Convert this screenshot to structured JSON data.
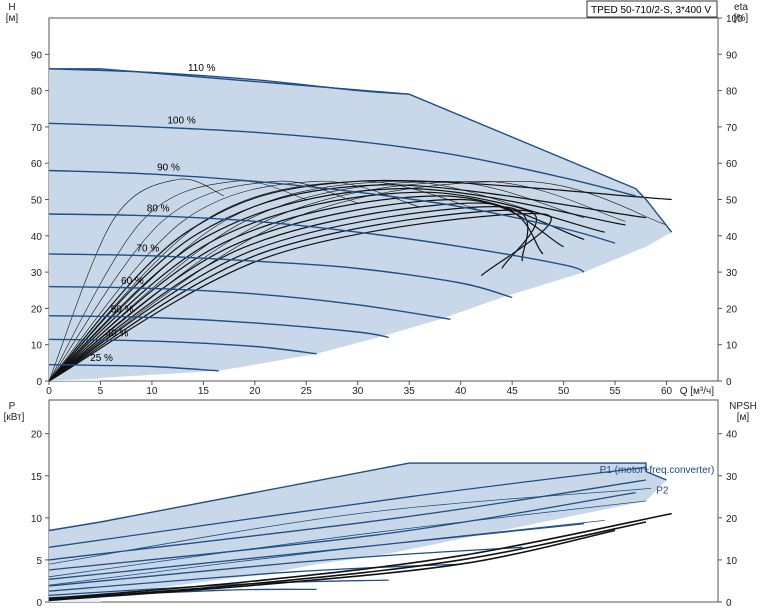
{
  "pump_label": "TPED 50-710/2-S, 3*400 V",
  "colors": {
    "area_fill": "#c9d8e8",
    "area_fill_light": "#e6eef7",
    "curve_blue": "#1f4f86",
    "eta_black": "#111111",
    "axis": "#555555",
    "grid": "#d8d8d8"
  },
  "chart_data": [
    {
      "type": "line",
      "name": "head",
      "ylabel_top": "H",
      "yunit": "[м]",
      "y2label_top": "eta",
      "y2unit": "[%]",
      "xlabel": "Q [м³/ч]",
      "xlim": [
        0,
        65
      ],
      "ylim": [
        0,
        100
      ],
      "y2lim": [
        0,
        100
      ],
      "x_ticks": [
        0,
        5,
        10,
        15,
        20,
        25,
        30,
        35,
        40,
        45,
        50,
        55,
        60
      ],
      "y_ticks": [
        0,
        10,
        20,
        30,
        40,
        50,
        60,
        70,
        80,
        90
      ],
      "y2_ticks": [
        0,
        10,
        20,
        30,
        40,
        50,
        60,
        70,
        80,
        90,
        100
      ],
      "series": [
        {
          "name": "110 %",
          "label_x": 13.5,
          "x": [
            0,
            10,
            20,
            30,
            35
          ],
          "values": [
            86,
            85,
            83,
            80,
            79
          ]
        },
        {
          "name": "100 %",
          "label_x": 11.5,
          "x": [
            0,
            10,
            20,
            30,
            40,
            50,
            57
          ],
          "values": [
            71,
            70,
            68.5,
            66,
            62,
            56,
            51
          ]
        },
        {
          "name": "90 %",
          "label_x": 10.5,
          "x": [
            0,
            10,
            20,
            30,
            40,
            50,
            55
          ],
          "values": [
            58,
            57,
            55,
            52,
            48,
            42,
            38
          ]
        },
        {
          "name": "80 %",
          "label_x": 9.5,
          "x": [
            0,
            10,
            20,
            30,
            40,
            50,
            52
          ],
          "values": [
            46,
            45.5,
            44,
            41,
            37,
            32,
            30
          ]
        },
        {
          "name": "70 %",
          "label_x": 8.5,
          "x": [
            0,
            10,
            20,
            30,
            40,
            45
          ],
          "values": [
            35,
            34.5,
            33,
            31,
            27,
            23
          ]
        },
        {
          "name": "60 %",
          "label_x": 7,
          "x": [
            0,
            10,
            20,
            30,
            39
          ],
          "values": [
            26,
            25.5,
            24,
            21,
            17
          ]
        },
        {
          "name": "50 %",
          "label_x": 6,
          "x": [
            0,
            10,
            20,
            30,
            33
          ],
          "values": [
            18,
            17.5,
            16,
            13.5,
            12
          ]
        },
        {
          "name": "40 %",
          "label_x": 5.5,
          "x": [
            0,
            10,
            20,
            26
          ],
          "values": [
            11.5,
            11,
            9.5,
            7.5
          ]
        },
        {
          "name": "25 %",
          "label_x": 4,
          "x": [
            0,
            5,
            10,
            16.5
          ],
          "values": [
            4.5,
            4.3,
            4,
            2.8
          ]
        }
      ],
      "area_hull": {
        "x": [
          0,
          5,
          35,
          57,
          58,
          60.5,
          58,
          52,
          44,
          38,
          32,
          26,
          21,
          16.5,
          0
        ],
        "values": [
          86,
          86,
          79,
          53,
          50,
          41,
          37,
          30,
          23,
          17,
          12,
          7.5,
          5,
          2.8,
          0
        ]
      },
      "eta_curves": [
        {
          "peak_x": 30,
          "peak_y": 55,
          "end_x": 60.5,
          "end_y": 50
        },
        {
          "peak_x": 32,
          "peak_y": 54,
          "end_x": 58,
          "end_y": 45
        },
        {
          "peak_x": 34,
          "peak_y": 53,
          "end_x": 56,
          "end_y": 43
        },
        {
          "peak_x": 36,
          "peak_y": 52,
          "end_x": 54,
          "end_y": 41
        },
        {
          "peak_x": 38,
          "peak_y": 51,
          "end_x": 52,
          "end_y": 39
        },
        {
          "peak_x": 40,
          "peak_y": 50,
          "end_x": 50,
          "end_y": 37
        },
        {
          "peak_x": 42,
          "peak_y": 49,
          "end_x": 48,
          "end_y": 35
        },
        {
          "peak_x": 44,
          "peak_y": 48,
          "end_x": 46,
          "end_y": 33
        },
        {
          "peak_x": 46,
          "peak_y": 47,
          "end_x": 44,
          "end_y": 31
        },
        {
          "peak_x": 48,
          "peak_y": 46,
          "end_x": 42,
          "end_y": 29
        }
      ],
      "eta_thin": [
        {
          "peak_x": 12.5,
          "peak_y": 55.5,
          "end_x": 17,
          "end_y": 51
        },
        {
          "peak_x": 18,
          "peak_y": 55,
          "end_x": 25,
          "end_y": 50
        },
        {
          "peak_x": 22,
          "peak_y": 55,
          "end_x": 30,
          "end_y": 49
        },
        {
          "peak_x": 26,
          "peak_y": 55,
          "end_x": 36,
          "end_y": 48
        },
        {
          "peak_x": 30,
          "peak_y": 55,
          "end_x": 42,
          "end_y": 47
        },
        {
          "peak_x": 34,
          "peak_y": 55,
          "end_x": 48,
          "end_y": 46
        },
        {
          "peak_x": 38,
          "peak_y": 55,
          "end_x": 52,
          "end_y": 45
        },
        {
          "peak_x": 42,
          "peak_y": 55,
          "end_x": 56,
          "end_y": 44
        },
        {
          "peak_x": 46,
          "peak_y": 55,
          "end_x": 60,
          "end_y": 43
        }
      ]
    },
    {
      "type": "line",
      "name": "power",
      "ylabel_top": "P",
      "yunit": "[кВт]",
      "y2label_top": "NPSH",
      "y2unit": "[м]",
      "xlim": [
        0,
        65
      ],
      "ylim": [
        0,
        24
      ],
      "y2lim": [
        0,
        48
      ],
      "y_ticks": [
        0,
        5,
        10,
        15,
        20
      ],
      "y2_ticks": [
        0,
        10,
        20,
        30,
        40
      ],
      "legend": [
        "P1 (motor+freq.converter)",
        "P2"
      ],
      "p1_area": {
        "x": [
          0,
          5,
          35,
          58,
          58,
          60,
          58,
          52,
          44,
          38,
          32,
          26,
          21,
          17,
          0
        ],
        "values": [
          8.5,
          9.5,
          16.5,
          16.5,
          15.5,
          14.5,
          12,
          10.5,
          8.5,
          7,
          5.5,
          4.5,
          3.3,
          2.7,
          0
        ]
      },
      "p1_curves": [
        {
          "x": [
            0,
            35,
            58
          ],
          "values": [
            6.5,
            12.5,
            16
          ]
        },
        {
          "x": [
            0,
            34,
            58
          ],
          "values": [
            5,
            10,
            14.5
          ]
        },
        {
          "x": [
            0,
            32,
            57
          ],
          "values": [
            3.8,
            8,
            13
          ]
        },
        {
          "x": [
            0,
            30,
            52
          ],
          "values": [
            2.7,
            6.5,
            9.3
          ]
        },
        {
          "x": [
            0,
            27,
            46
          ],
          "values": [
            1.9,
            5,
            6.5
          ]
        },
        {
          "x": [
            0,
            24,
            40
          ],
          "values": [
            1.3,
            3.6,
            4.5
          ]
        },
        {
          "x": [
            0,
            20,
            33
          ],
          "values": [
            0.8,
            2.2,
            2.6
          ]
        },
        {
          "x": [
            0,
            17,
            26
          ],
          "values": [
            0.5,
            1.4,
            1.5
          ]
        }
      ],
      "p2_curves": [
        {
          "x": [
            0,
            30,
            58.5
          ],
          "values": [
            4.5,
            10.5,
            13.5
          ]
        },
        {
          "x": [
            0,
            30,
            58
          ],
          "values": [
            3,
            8,
            12
          ]
        },
        {
          "x": [
            0,
            28,
            54
          ],
          "values": [
            2,
            6.2,
            9.7
          ]
        }
      ],
      "npsh_curves": [
        {
          "x": [
            0,
            20,
            40,
            60.5
          ],
          "values": [
            0.4,
            2.5,
            5.5,
            10.5
          ]
        },
        {
          "x": [
            0,
            20,
            40,
            58
          ],
          "values": [
            0.3,
            2.2,
            5.0,
            9.5
          ]
        },
        {
          "x": [
            0,
            20,
            40,
            55
          ],
          "values": [
            0.2,
            2,
            4.5,
            8.5
          ]
        }
      ]
    }
  ]
}
